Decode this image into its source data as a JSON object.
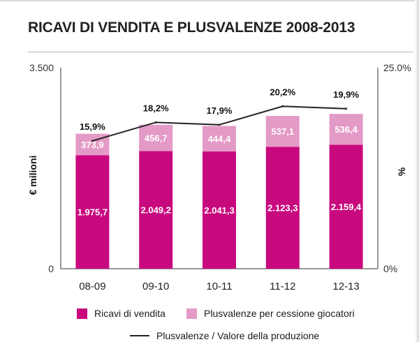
{
  "chart_data": {
    "type": "bar",
    "title": "RICAVI DI VENDITA E PLUSVALENZE 2008-2013",
    "categories": [
      "08-09",
      "09-10",
      "10-11",
      "11-12",
      "12-13"
    ],
    "series": [
      {
        "name": "Ricavi di vendita",
        "values": [
          1975.7,
          2049.2,
          2041.3,
          2123.3,
          2159.4
        ],
        "labels": [
          "1.975,7",
          "2.049,2",
          "2.041,3",
          "2.123,3",
          "2.159,4"
        ],
        "color": "#c8097e"
      },
      {
        "name": "Plusvalenze per cessione giocatori",
        "values": [
          373.9,
          456.7,
          444.4,
          537.1,
          536.4
        ],
        "labels": [
          "373,9",
          "456,7",
          "444,4",
          "537,1",
          "536,4"
        ],
        "color": "#e49ac6"
      },
      {
        "name": "Plusvalenze / Valore della produzione",
        "axis": "right",
        "type": "line",
        "values": [
          15.9,
          18.2,
          17.9,
          20.2,
          19.9
        ],
        "labels": [
          "15,9%",
          "18,2%",
          "17,9%",
          "20,2%",
          "19,9%"
        ],
        "color": "#222222"
      }
    ],
    "ylabel": "€ milioni",
    "y2label": "%",
    "ylim": [
      0,
      3500
    ],
    "y2lim": [
      0,
      25
    ],
    "ytick_labels": [
      "0",
      "3.500"
    ],
    "y2tick_labels": [
      "0%",
      "25.0%"
    ],
    "grid": false,
    "stacked": true,
    "legend_position": "bottom"
  }
}
